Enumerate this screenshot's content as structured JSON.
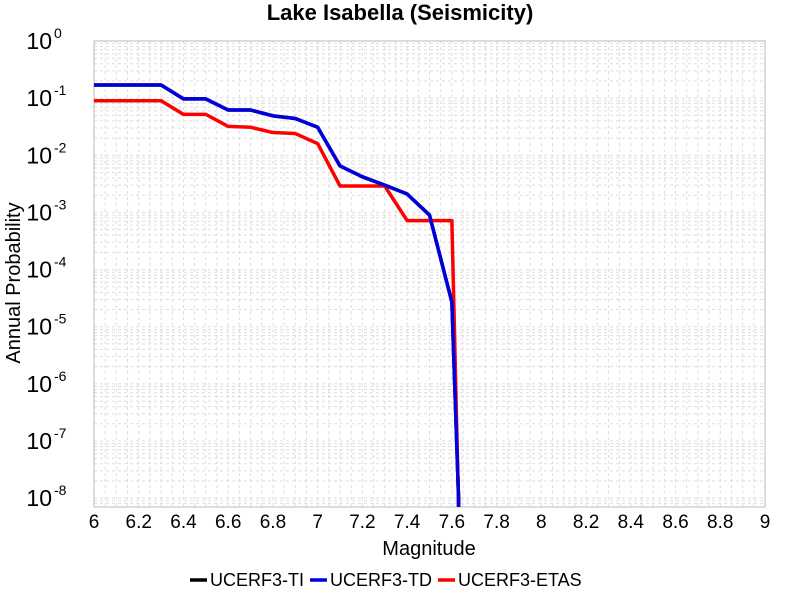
{
  "chart_data": {
    "type": "line",
    "title": "Lake Isabella (Seismicity)",
    "xlabel": "Magnitude",
    "ylabel": "Annual Probability",
    "xlim": [
      6,
      9
    ],
    "ylim": [
      7e-09,
      1
    ],
    "yscale": "log",
    "grid": true,
    "legend_position": "bottom",
    "x_ticks": [
      "6",
      "6.2",
      "6.4",
      "6.6",
      "6.8",
      "7",
      "7.2",
      "7.4",
      "7.6",
      "7.8",
      "8",
      "8.2",
      "8.4",
      "8.6",
      "8.8",
      "9"
    ],
    "y_ticks": [
      {
        "base": "10",
        "exp": "0"
      },
      {
        "base": "10",
        "exp": "-1"
      },
      {
        "base": "10",
        "exp": "-2"
      },
      {
        "base": "10",
        "exp": "-3"
      },
      {
        "base": "10",
        "exp": "-4"
      },
      {
        "base": "10",
        "exp": "-5"
      },
      {
        "base": "10",
        "exp": "-6"
      },
      {
        "base": "10",
        "exp": "-7"
      },
      {
        "base": "10",
        "exp": "-8"
      }
    ],
    "series": [
      {
        "name": "UCERF3-TI",
        "color": "#000000",
        "x": [
          6.0,
          6.1,
          6.2,
          6.3,
          6.4,
          6.5,
          6.6,
          6.7,
          6.8,
          6.9,
          7.0,
          7.1,
          7.2,
          7.3,
          7.4,
          7.5,
          7.6,
          7.63,
          7.63
        ],
        "y": [
          0.17,
          0.17,
          0.17,
          0.17,
          0.097,
          0.097,
          0.062,
          0.062,
          0.049,
          0.044,
          0.031,
          0.0065,
          0.0042,
          0.003,
          0.0021,
          0.0009,
          2.7e-05,
          1e-08,
          7e-09
        ]
      },
      {
        "name": "UCERF3-TD",
        "color": "#0000dd",
        "x": [
          6.0,
          6.1,
          6.2,
          6.3,
          6.4,
          6.5,
          6.6,
          6.7,
          6.8,
          6.9,
          7.0,
          7.1,
          7.2,
          7.3,
          7.4,
          7.5,
          7.6,
          7.63,
          7.63
        ],
        "y": [
          0.17,
          0.17,
          0.17,
          0.17,
          0.097,
          0.097,
          0.062,
          0.062,
          0.049,
          0.044,
          0.031,
          0.0065,
          0.0042,
          0.003,
          0.0021,
          0.0009,
          2.7e-05,
          1e-08,
          7e-09
        ]
      },
      {
        "name": "UCERF3-ETAS",
        "color": "#ff0000",
        "x": [
          6.0,
          6.1,
          6.2,
          6.3,
          6.4,
          6.5,
          6.6,
          6.7,
          6.8,
          6.9,
          7.0,
          7.1,
          7.2,
          7.3,
          7.4,
          7.5,
          7.6,
          7.6,
          7.63
        ],
        "y": [
          0.09,
          0.09,
          0.09,
          0.09,
          0.052,
          0.052,
          0.032,
          0.031,
          0.025,
          0.024,
          0.016,
          0.0029,
          0.0029,
          0.0029,
          0.00072,
          0.00072,
          0.00072,
          0.00072,
          7e-09
        ]
      }
    ]
  }
}
